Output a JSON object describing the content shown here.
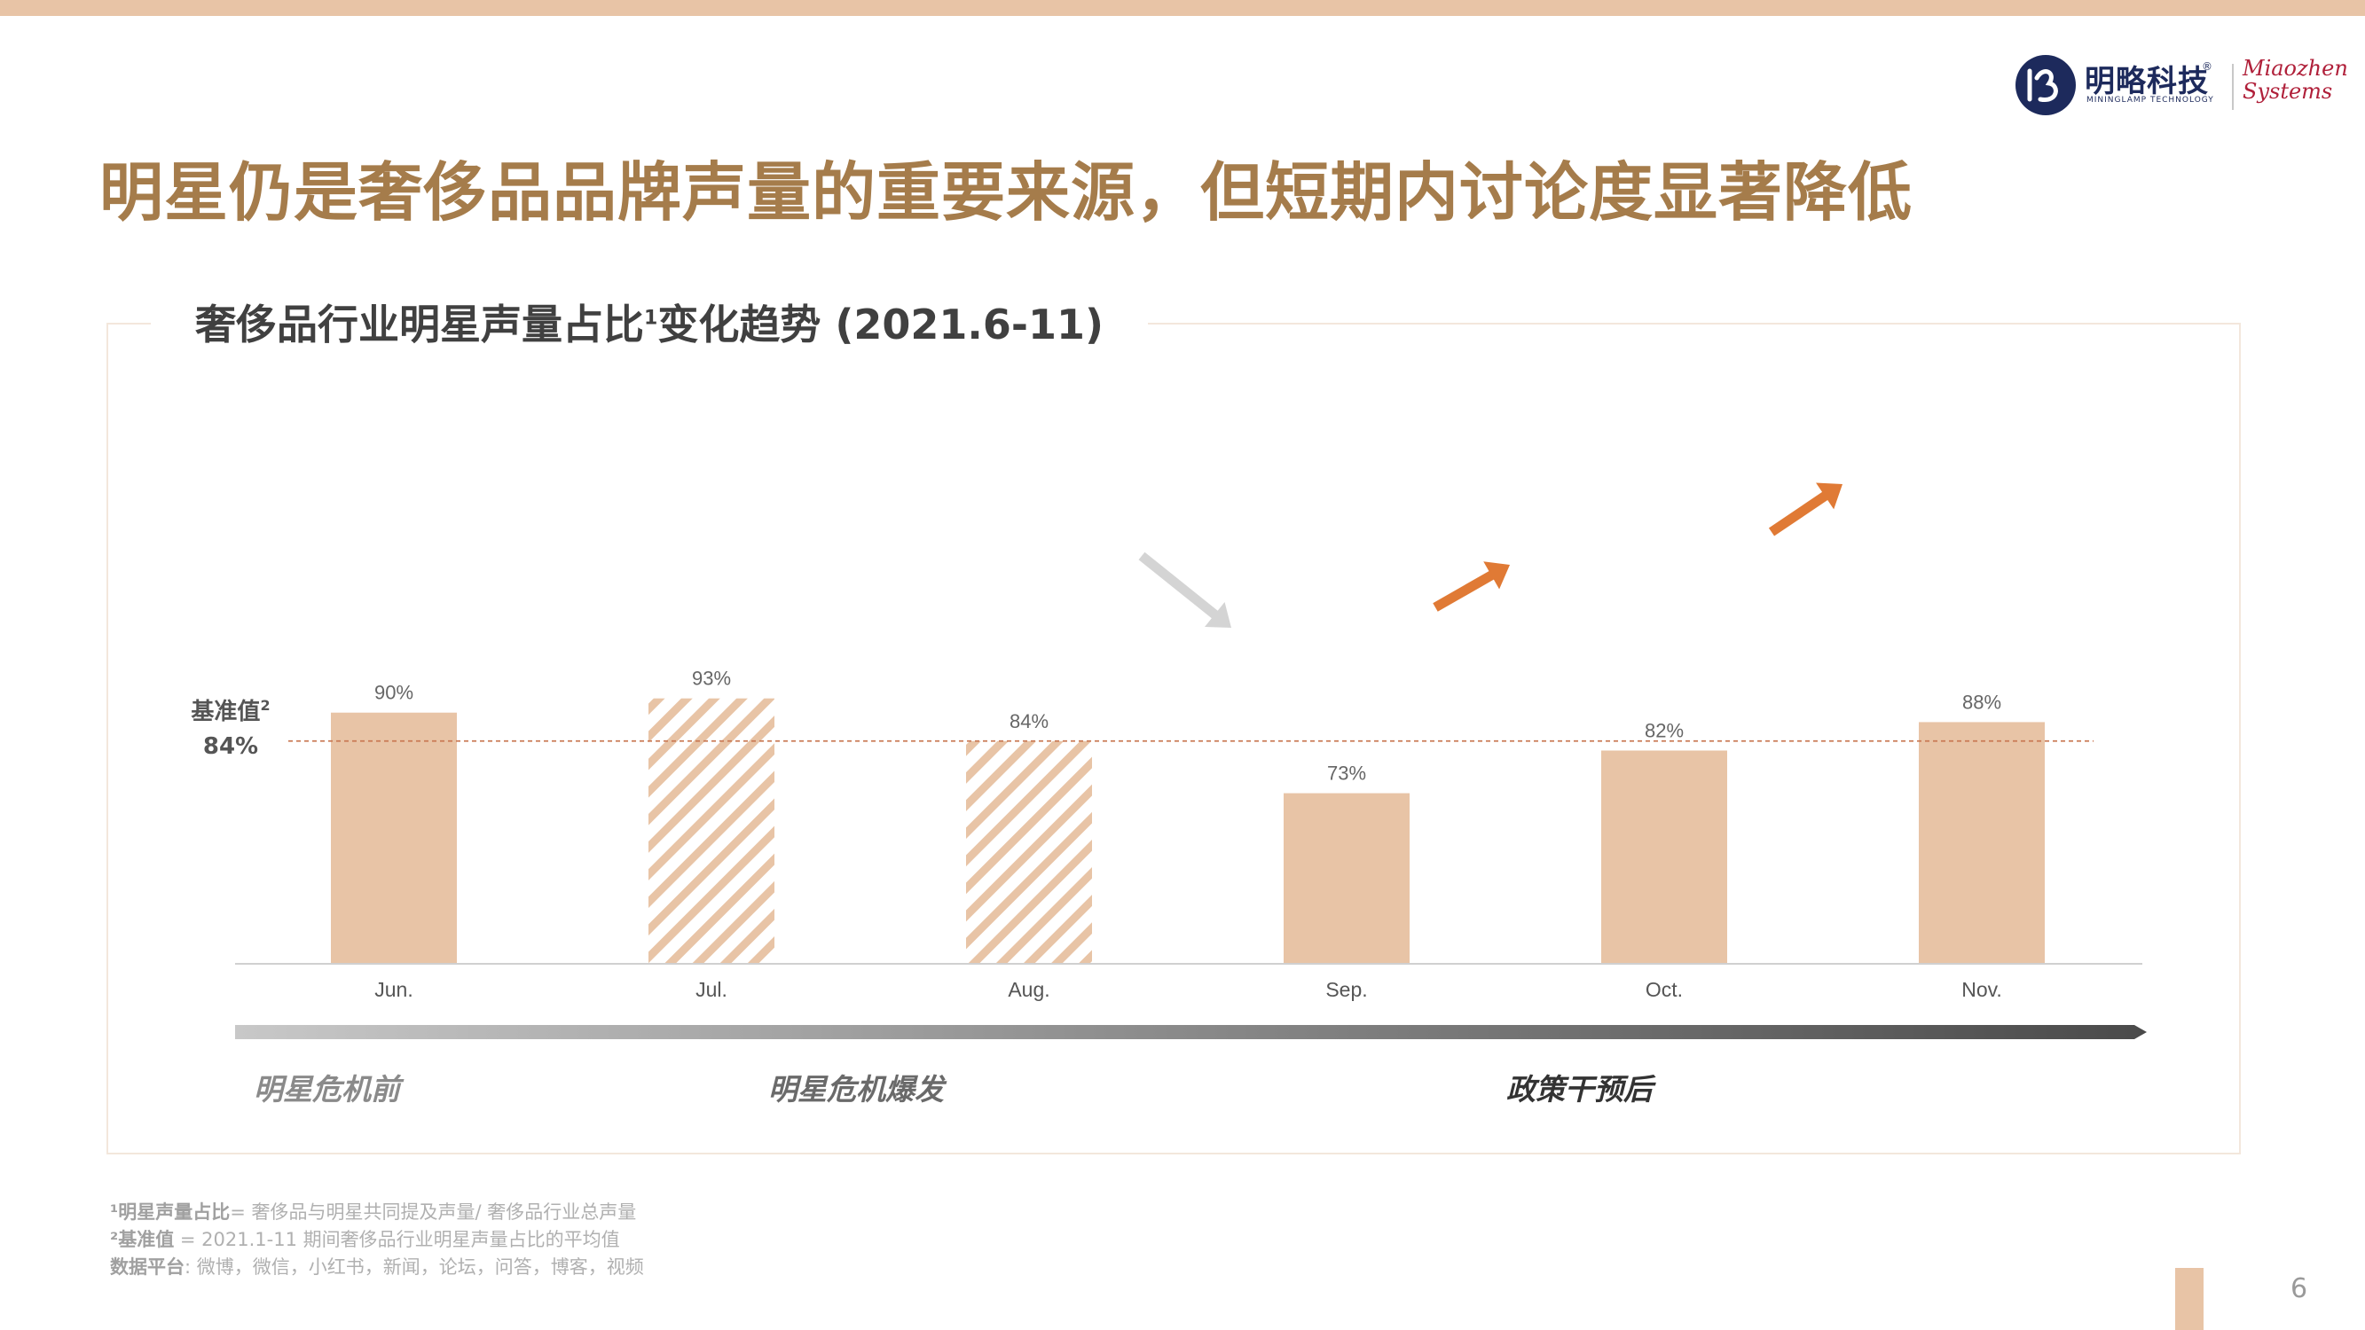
{
  "page": {
    "title": "明星仍是奢侈品品牌声量的重要来源，但短期内讨论度显著降低",
    "page_number": "6",
    "accent_color": "#e8c4a6",
    "title_color": "#a57c4b"
  },
  "logo": {
    "name_cn": "明略科技",
    "name_en": "MININGLAMP TECHNOLOGY",
    "registered": "®",
    "partner_line1": "Miaozhen",
    "partner_line2": "Systems"
  },
  "chart_title": {
    "main": "奢侈品行业明星声量占比",
    "sup": "1",
    "suffix": "变化趋势 (2021.6-11)"
  },
  "chart_data": {
    "type": "bar",
    "categories": [
      "Jun.",
      "Jul.",
      "Aug.",
      "Sep.",
      "Oct.",
      "Nov."
    ],
    "values": [
      90,
      93,
      84,
      73,
      82,
      88
    ],
    "value_labels": [
      "90%",
      "93%",
      "84%",
      "73%",
      "82%",
      "88%"
    ],
    "unit": "%",
    "styles": [
      "solid",
      "hatched",
      "hatched",
      "solid",
      "solid",
      "solid"
    ],
    "ylim": [
      0,
      100
    ],
    "bar_color": "#e8c4a6",
    "baseline": {
      "label": "基准值",
      "label_sup": "2",
      "value": 84,
      "value_label": "84%",
      "line_color": "#c97a55"
    },
    "trend_arrows": [
      {
        "between": [
          "Aug.",
          "Sep."
        ],
        "direction": "down",
        "color": "#d4d4d4"
      },
      {
        "between": [
          "Sep.",
          "Oct."
        ],
        "direction": "up",
        "color": "#e07a35"
      },
      {
        "between": [
          "Oct.",
          "Nov."
        ],
        "direction": "up",
        "color": "#e07a35"
      }
    ],
    "timeline": {
      "phases": [
        "明星危机前",
        "明星危机爆发",
        "政策干预后"
      ],
      "phase_colors": [
        "#8a8a8a",
        "#6a6a6a",
        "#333333"
      ]
    },
    "grid": false,
    "legend": "none"
  },
  "footnotes": [
    {
      "key": "¹明星声量占比",
      "text": "= 奢侈品与明星共同提及声量/ 奢侈品行业总声量"
    },
    {
      "key": "²基准值",
      "text": " = 2021.1-11 期间奢侈品行业明星声量占比的平均值"
    },
    {
      "key": "数据平台",
      "text": ": 微博，微信，小红书，新闻，论坛，问答，博客，视频"
    }
  ]
}
